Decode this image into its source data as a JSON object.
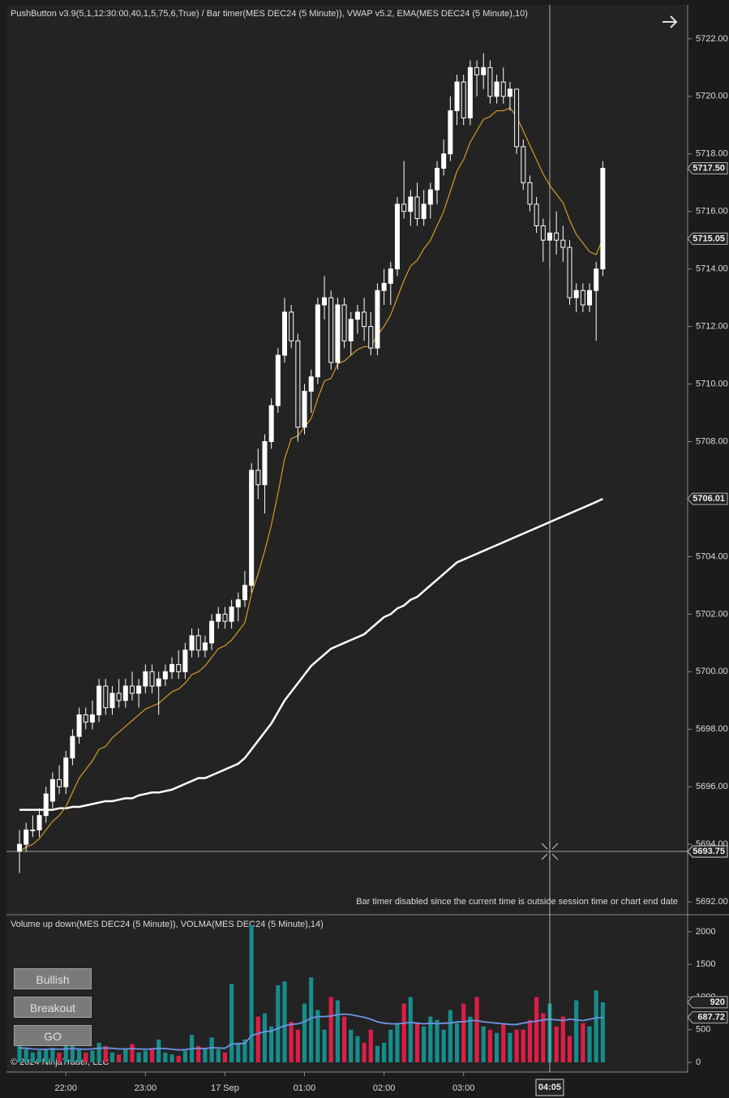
{
  "chart_data": [
    {
      "type": "candlestick",
      "title": "PushButton v3.9(5,1,12:30:00,40,1,5,75,6,True) / Bar timer(MES DEC24 (5 Minute)), VWAP v5.2, EMA(MES DEC24 (5 Minute),10)",
      "note": "Bar timer disabled since the current time is outside session time or chart end date",
      "x": [
        0,
        1,
        2,
        3,
        4,
        5,
        6,
        7,
        8,
        9,
        10,
        11,
        12,
        13,
        14,
        15,
        16,
        17,
        18,
        19,
        20,
        21,
        22,
        23,
        24,
        25,
        26,
        27,
        28,
        29,
        30,
        31,
        32,
        33,
        34,
        35,
        36,
        37,
        38,
        39,
        40,
        41,
        42,
        43,
        44,
        45,
        46,
        47,
        48,
        49,
        50,
        51,
        52,
        53,
        54,
        55,
        56,
        57,
        58,
        59,
        60,
        61,
        62,
        63,
        64,
        65,
        66,
        67,
        68,
        69,
        70,
        71,
        72,
        73,
        74,
        75,
        76,
        77,
        78,
        79,
        80,
        81,
        82,
        83,
        84,
        85,
        86,
        87,
        88
      ],
      "ohlc": [
        [
          5693.75,
          5694.5,
          5693.0,
          5694.0
        ],
        [
          5694.0,
          5694.75,
          5693.75,
          5694.5
        ],
        [
          5694.5,
          5695.0,
          5694.25,
          5694.5
        ],
        [
          5694.5,
          5695.25,
          5694.25,
          5695.0
        ],
        [
          5695.0,
          5696.0,
          5694.75,
          5695.75
        ],
        [
          5695.5,
          5696.5,
          5695.25,
          5696.25
        ],
        [
          5696.25,
          5696.75,
          5695.75,
          5696.0
        ],
        [
          5696.0,
          5697.25,
          5695.75,
          5697.0
        ],
        [
          5697.0,
          5698.0,
          5696.75,
          5697.75
        ],
        [
          5697.75,
          5698.75,
          5697.5,
          5698.5
        ],
        [
          5698.5,
          5698.75,
          5698.0,
          5698.25
        ],
        [
          5698.25,
          5699.0,
          5698.0,
          5698.5
        ],
        [
          5698.5,
          5699.75,
          5698.25,
          5699.5
        ],
        [
          5699.5,
          5699.75,
          5698.5,
          5698.75
        ],
        [
          5698.75,
          5699.5,
          5698.5,
          5699.25
        ],
        [
          5699.25,
          5699.75,
          5698.75,
          5699.0
        ],
        [
          5699.0,
          5699.75,
          5698.75,
          5699.5
        ],
        [
          5699.5,
          5700.0,
          5699.0,
          5699.25
        ],
        [
          5699.25,
          5699.75,
          5698.75,
          5699.5
        ],
        [
          5699.5,
          5700.25,
          5699.25,
          5700.0
        ],
        [
          5700.0,
          5700.25,
          5699.25,
          5699.5
        ],
        [
          5699.5,
          5700.0,
          5698.5,
          5699.75
        ],
        [
          5699.75,
          5700.25,
          5699.5,
          5700.0
        ],
        [
          5700.0,
          5700.5,
          5699.75,
          5700.25
        ],
        [
          5700.25,
          5700.75,
          5699.75,
          5700.0
        ],
        [
          5700.0,
          5701.0,
          5699.75,
          5700.75
        ],
        [
          5700.75,
          5701.5,
          5700.5,
          5701.25
        ],
        [
          5701.25,
          5701.5,
          5700.5,
          5700.75
        ],
        [
          5700.75,
          5701.25,
          5700.5,
          5701.0
        ],
        [
          5701.0,
          5702.0,
          5700.75,
          5701.75
        ],
        [
          5701.75,
          5702.25,
          5701.5,
          5702.0
        ],
        [
          5702.0,
          5702.25,
          5701.5,
          5701.75
        ],
        [
          5701.75,
          5702.5,
          5701.5,
          5702.25
        ],
        [
          5702.25,
          5702.75,
          5701.75,
          5702.5
        ],
        [
          5702.5,
          5703.5,
          5702.25,
          5703.0
        ],
        [
          5703.0,
          5707.25,
          5702.75,
          5707.0
        ],
        [
          5707.0,
          5707.75,
          5706.0,
          5706.5
        ],
        [
          5706.5,
          5708.25,
          5705.5,
          5708.0
        ],
        [
          5708.0,
          5709.5,
          5707.75,
          5709.25
        ],
        [
          5709.25,
          5711.25,
          5709.0,
          5711.0
        ],
        [
          5711.0,
          5713.0,
          5710.75,
          5712.5
        ],
        [
          5712.5,
          5712.75,
          5711.25,
          5711.5
        ],
        [
          5711.5,
          5711.75,
          5708.0,
          5708.5
        ],
        [
          5708.5,
          5710.0,
          5708.25,
          5709.75
        ],
        [
          5709.75,
          5710.5,
          5709.0,
          5710.25
        ],
        [
          5710.25,
          5713.0,
          5710.0,
          5712.75
        ],
        [
          5712.75,
          5713.75,
          5712.25,
          5713.0
        ],
        [
          5713.0,
          5713.25,
          5710.5,
          5710.75
        ],
        [
          5710.75,
          5713.0,
          5710.5,
          5712.75
        ],
        [
          5712.75,
          5713.0,
          5711.25,
          5711.5
        ],
        [
          5711.5,
          5712.5,
          5711.0,
          5712.25
        ],
        [
          5712.25,
          5712.75,
          5711.75,
          5712.5
        ],
        [
          5712.5,
          5713.0,
          5711.5,
          5712.0
        ],
        [
          5712.0,
          5712.5,
          5711.0,
          5711.25
        ],
        [
          5711.25,
          5713.5,
          5711.0,
          5713.25
        ],
        [
          5713.25,
          5714.0,
          5712.75,
          5713.5
        ],
        [
          5713.5,
          5714.25,
          5712.75,
          5714.0
        ],
        [
          5714.0,
          5716.5,
          5713.75,
          5716.25
        ],
        [
          5716.25,
          5717.75,
          5715.75,
          5716.0
        ],
        [
          5716.0,
          5716.75,
          5715.5,
          5716.5
        ],
        [
          5716.5,
          5717.0,
          5715.5,
          5715.75
        ],
        [
          5715.75,
          5716.75,
          5715.5,
          5716.25
        ],
        [
          5716.25,
          5717.0,
          5715.75,
          5716.75
        ],
        [
          5716.75,
          5717.75,
          5716.25,
          5717.5
        ],
        [
          5717.5,
          5718.5,
          5717.25,
          5718.0
        ],
        [
          5718.0,
          5720.0,
          5717.75,
          5719.5
        ],
        [
          5719.5,
          5720.75,
          5719.0,
          5720.5
        ],
        [
          5720.5,
          5720.75,
          5719.0,
          5719.25
        ],
        [
          5719.25,
          5721.25,
          5719.0,
          5721.0
        ],
        [
          5721.0,
          5721.25,
          5720.0,
          5720.75
        ],
        [
          5720.75,
          5721.5,
          5720.25,
          5721.0
        ],
        [
          5721.0,
          5721.25,
          5719.75,
          5720.0
        ],
        [
          5720.0,
          5720.75,
          5719.75,
          5720.5
        ],
        [
          5720.5,
          5721.0,
          5719.75,
          5720.0
        ],
        [
          5720.0,
          5720.5,
          5719.5,
          5720.25
        ],
        [
          5720.25,
          5720.25,
          5718.0,
          5718.25
        ],
        [
          5718.25,
          5718.5,
          5716.75,
          5717.0
        ],
        [
          5717.0,
          5717.25,
          5716.0,
          5716.25
        ],
        [
          5716.25,
          5716.5,
          5715.25,
          5715.5
        ],
        [
          5715.5,
          5715.75,
          5714.25,
          5715.0
        ],
        [
          5715.0,
          5715.75,
          5714.0,
          5715.25
        ],
        [
          5715.25,
          5716.0,
          5714.5,
          5715.0
        ],
        [
          5715.0,
          5715.5,
          5714.25,
          5714.75
        ],
        [
          5714.75,
          5715.0,
          5712.75,
          5713.0
        ],
        [
          5713.0,
          5713.5,
          5712.5,
          5713.25
        ],
        [
          5713.25,
          5713.5,
          5712.5,
          5712.75
        ],
        [
          5712.75,
          5713.5,
          5712.5,
          5713.25
        ],
        [
          5713.25,
          5714.25,
          5711.5,
          5714.0
        ],
        [
          5714.0,
          5717.75,
          5713.75,
          5717.5
        ]
      ],
      "up_color": "#ffffff",
      "down_color": "#232323",
      "outline_color": "#ffffff",
      "ema": {
        "color": "#d49a2a",
        "values": [
          5693.75,
          5693.9,
          5694.0,
          5694.2,
          5694.5,
          5694.8,
          5695.0,
          5695.3,
          5695.8,
          5696.3,
          5696.6,
          5696.9,
          5697.3,
          5697.4,
          5697.7,
          5697.9,
          5698.1,
          5698.3,
          5698.5,
          5698.7,
          5698.8,
          5698.9,
          5699.1,
          5699.3,
          5699.4,
          5699.6,
          5699.9,
          5700.0,
          5700.2,
          5700.5,
          5700.8,
          5700.9,
          5701.1,
          5701.4,
          5701.7,
          5702.7,
          5703.4,
          5704.2,
          5705.1,
          5706.2,
          5707.4,
          5708.1,
          5708.2,
          5708.5,
          5708.8,
          5709.5,
          5710.1,
          5710.2,
          5710.7,
          5710.8,
          5711.0,
          5711.2,
          5711.3,
          5711.3,
          5711.7,
          5712.0,
          5712.4,
          5713.0,
          5713.6,
          5714.1,
          5714.3,
          5714.7,
          5715.0,
          5715.5,
          5716.0,
          5716.7,
          5717.4,
          5717.8,
          5718.4,
          5718.8,
          5719.2,
          5719.3,
          5719.5,
          5719.5,
          5719.6,
          5719.3,
          5718.8,
          5718.3,
          5717.8,
          5717.3,
          5716.9,
          5716.6,
          5716.3,
          5715.7,
          5715.2,
          5714.9,
          5714.6,
          5714.5,
          5715.05
        ]
      },
      "vwap": {
        "color": "#ffffff",
        "values": [
          5695.2,
          5695.2,
          5695.2,
          5695.2,
          5695.2,
          5695.2,
          5695.25,
          5695.25,
          5695.3,
          5695.3,
          5695.35,
          5695.4,
          5695.45,
          5695.5,
          5695.5,
          5695.55,
          5695.6,
          5695.6,
          5695.7,
          5695.75,
          5695.8,
          5695.8,
          5695.85,
          5695.9,
          5696.0,
          5696.1,
          5696.2,
          5696.3,
          5696.3,
          5696.4,
          5696.5,
          5696.6,
          5696.7,
          5696.8,
          5697.0,
          5697.3,
          5697.6,
          5697.9,
          5698.2,
          5698.6,
          5699.0,
          5699.3,
          5699.6,
          5699.9,
          5700.2,
          5700.4,
          5700.6,
          5700.8,
          5700.9,
          5701.0,
          5701.1,
          5701.2,
          5701.3,
          5701.5,
          5701.7,
          5701.9,
          5702.0,
          5702.2,
          5702.3,
          5702.5,
          5702.6,
          5702.8,
          5703.0,
          5703.2,
          5703.4,
          5703.6,
          5703.8,
          5703.9,
          5704.0,
          5704.1,
          5704.2,
          5704.3,
          5704.4,
          5704.5,
          5704.6,
          5704.7,
          5704.8,
          5704.9,
          5705.0,
          5705.1,
          5705.2,
          5705.3,
          5705.4,
          5705.5,
          5705.6,
          5705.7,
          5705.8,
          5705.9,
          5706.01
        ]
      },
      "xlim": [
        -1.96,
        100.8
      ],
      "ylim": [
        5691.58,
        5723.18
      ],
      "yticks": [
        {
          "value": 5692,
          "label": "5692.00"
        },
        {
          "value": 5694,
          "label": "5694.00"
        },
        {
          "value": 5696,
          "label": "5696.00"
        },
        {
          "value": 5698,
          "label": "5698.00"
        },
        {
          "value": 5700,
          "label": "5700.00"
        },
        {
          "value": 5702,
          "label": "5702.00"
        },
        {
          "value": 5704,
          "label": "5704.00"
        },
        {
          "value": 5706,
          "label": "5706.00"
        },
        {
          "value": 5708,
          "label": "5708.00"
        },
        {
          "value": 5710,
          "label": "5710.00"
        },
        {
          "value": 5712,
          "label": "5712.00"
        },
        {
          "value": 5714,
          "label": "5714.00"
        },
        {
          "value": 5716,
          "label": "5716.00"
        },
        {
          "value": 5718,
          "label": "5718.00"
        },
        {
          "value": 5720,
          "label": "5720.00"
        },
        {
          "value": 5722,
          "label": "5722.00"
        }
      ],
      "price_markers": [
        {
          "value": 5717.5,
          "label": "5717.50"
        },
        {
          "value": 5715.05,
          "label": "5715.05"
        },
        {
          "value": 5706.01,
          "label": "5706.01"
        }
      ],
      "crosshair": {
        "x": {
          "value": 80,
          "label": "04:05"
        },
        "y": {
          "value": 5693.75,
          "label": "5693.75"
        }
      }
    },
    {
      "type": "bar",
      "title": "Volume up down(MES DEC24 (5 Minute)), VOLMA(MES DEC24 (5 Minute),14)",
      "x": [
        0,
        1,
        2,
        3,
        4,
        5,
        6,
        7,
        8,
        9,
        10,
        11,
        12,
        13,
        14,
        15,
        16,
        17,
        18,
        19,
        20,
        21,
        22,
        23,
        24,
        25,
        26,
        27,
        28,
        29,
        30,
        31,
        32,
        33,
        34,
        35,
        36,
        37,
        38,
        39,
        40,
        41,
        42,
        43,
        44,
        45,
        46,
        47,
        48,
        49,
        50,
        51,
        52,
        53,
        54,
        55,
        56,
        57,
        58,
        59,
        60,
        61,
        62,
        63,
        64,
        65,
        66,
        67,
        68,
        69,
        70,
        71,
        72,
        73,
        74,
        75,
        76,
        77,
        78,
        79,
        80,
        81,
        82,
        83,
        84,
        85,
        86,
        87,
        88
      ],
      "values": [
        250,
        200,
        150,
        180,
        200,
        220,
        150,
        300,
        250,
        200,
        150,
        180,
        300,
        250,
        150,
        120,
        200,
        280,
        150,
        180,
        220,
        350,
        150,
        120,
        100,
        180,
        420,
        250,
        200,
        380,
        200,
        150,
        1200,
        300,
        350,
        2100,
        700,
        750,
        550,
        1180,
        1240,
        620,
        500,
        900,
        1300,
        800,
        500,
        1000,
        950,
        700,
        500,
        400,
        300,
        500,
        250,
        300,
        500,
        600,
        900,
        1000,
        600,
        550,
        700,
        650,
        500,
        800,
        600,
        900,
        700,
        1000,
        550,
        500,
        450,
        600,
        450,
        500,
        500,
        650,
        1000,
        750,
        900,
        550,
        700,
        400,
        950,
        600,
        550,
        1100,
        920
      ],
      "up_color": "#178c8c",
      "down_color": "#dc1e46",
      "volma": {
        "color": "#6f93e6",
        "values": [
          220,
          215,
          205,
          200,
          200,
          205,
          200,
          205,
          210,
          205,
          200,
          205,
          215,
          220,
          215,
          205,
          205,
          210,
          205,
          200,
          205,
          215,
          210,
          200,
          190,
          195,
          210,
          215,
          210,
          225,
          220,
          215,
          280,
          285,
          290,
          410,
          440,
          470,
          480,
          520,
          560,
          580,
          590,
          620,
          680,
          700,
          700,
          710,
          730,
          740,
          730,
          710,
          690,
          660,
          620,
          600,
          590,
          590,
          600,
          610,
          600,
          590,
          600,
          590,
          600,
          600,
          620,
          620,
          640,
          640,
          620,
          610,
          600,
          590,
          580,
          580,
          600,
          620,
          630,
          650,
          660,
          650,
          640,
          660,
          650,
          640,
          660,
          680,
          687.72
        ]
      },
      "xlim": [
        -1.96,
        100.8
      ],
      "ylim": [
        -149,
        2248
      ],
      "yticks": [
        0,
        500,
        1000,
        1500,
        2000
      ],
      "xticks": [
        {
          "value": 7,
          "label": "22:00"
        },
        {
          "value": 19,
          "label": "23:00"
        },
        {
          "value": 31,
          "label": "17 Sep"
        },
        {
          "value": 43,
          "label": "01:00"
        },
        {
          "value": 55,
          "label": "02:00"
        },
        {
          "value": 67,
          "label": "03:00"
        }
      ],
      "value_markers": [
        {
          "value": 920,
          "label": "920"
        },
        {
          "value": 687.72,
          "label": "687.72"
        }
      ]
    }
  ],
  "buttons": [
    "Bullish",
    "Breakout",
    "GO"
  ],
  "copyright": "© 2024 NinjaTrader, LLC"
}
